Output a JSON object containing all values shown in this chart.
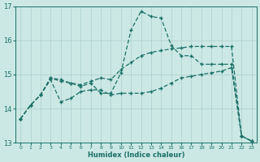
{
  "xlabel": "Humidex (Indice chaleur)",
  "xlim": [
    -0.5,
    23.5
  ],
  "ylim": [
    13,
    17
  ],
  "yticks": [
    13,
    14,
    15,
    16,
    17
  ],
  "xticks": [
    0,
    1,
    2,
    3,
    4,
    5,
    6,
    7,
    8,
    9,
    10,
    11,
    12,
    13,
    14,
    15,
    16,
    17,
    18,
    19,
    20,
    21,
    22,
    23
  ],
  "bg_color": "#cce8e4",
  "grid_color": "#aacfcc",
  "line_color": "#1a7068",
  "line1_x": [
    0,
    1,
    2,
    3,
    4,
    5,
    6,
    7,
    8,
    9,
    10,
    11,
    12,
    13,
    14,
    15,
    16,
    17,
    18,
    19,
    20,
    21,
    22,
    23
  ],
  "line1_y": [
    13.7,
    14.1,
    14.4,
    14.9,
    14.8,
    14.75,
    14.65,
    14.75,
    14.45,
    14.45,
    15.05,
    16.3,
    16.85,
    16.7,
    16.65,
    15.85,
    15.55,
    15.55,
    15.3,
    15.3,
    15.3,
    15.3,
    13.2,
    13.05
  ],
  "line2_x": [
    0,
    1,
    2,
    3,
    4,
    5,
    6,
    7,
    8,
    9,
    10,
    11,
    12,
    13,
    14,
    15,
    16,
    17,
    18,
    19,
    20,
    21,
    22,
    23
  ],
  "line2_y": [
    13.7,
    14.1,
    14.4,
    14.85,
    14.2,
    14.3,
    14.5,
    14.55,
    14.55,
    14.4,
    14.45,
    14.45,
    14.45,
    14.5,
    14.6,
    14.75,
    14.9,
    14.95,
    15.0,
    15.05,
    15.1,
    15.2,
    13.2,
    13.05
  ],
  "line3_x": [
    0,
    1,
    2,
    3,
    4,
    5,
    6,
    7,
    8,
    9,
    10,
    11,
    12,
    13,
    14,
    15,
    16,
    17,
    18,
    19,
    20,
    21,
    22,
    23
  ],
  "line3_y": [
    13.7,
    14.1,
    14.4,
    14.9,
    14.85,
    14.75,
    14.7,
    14.8,
    14.9,
    14.85,
    15.15,
    15.35,
    15.55,
    15.65,
    15.7,
    15.75,
    15.78,
    15.82,
    15.82,
    15.82,
    15.82,
    15.82,
    13.2,
    13.05
  ],
  "marker_x1": [
    0,
    1,
    2,
    3,
    4,
    6,
    7,
    8,
    10,
    11,
    12,
    13,
    14,
    15,
    16,
    17,
    21,
    22,
    23
  ],
  "marker_x2": [
    2,
    3,
    4,
    7,
    8,
    10,
    21,
    22,
    23
  ],
  "marker_x3": [
    2,
    3,
    8,
    10,
    11,
    12,
    14,
    15,
    16,
    17,
    18,
    19,
    20,
    21,
    22,
    23
  ]
}
